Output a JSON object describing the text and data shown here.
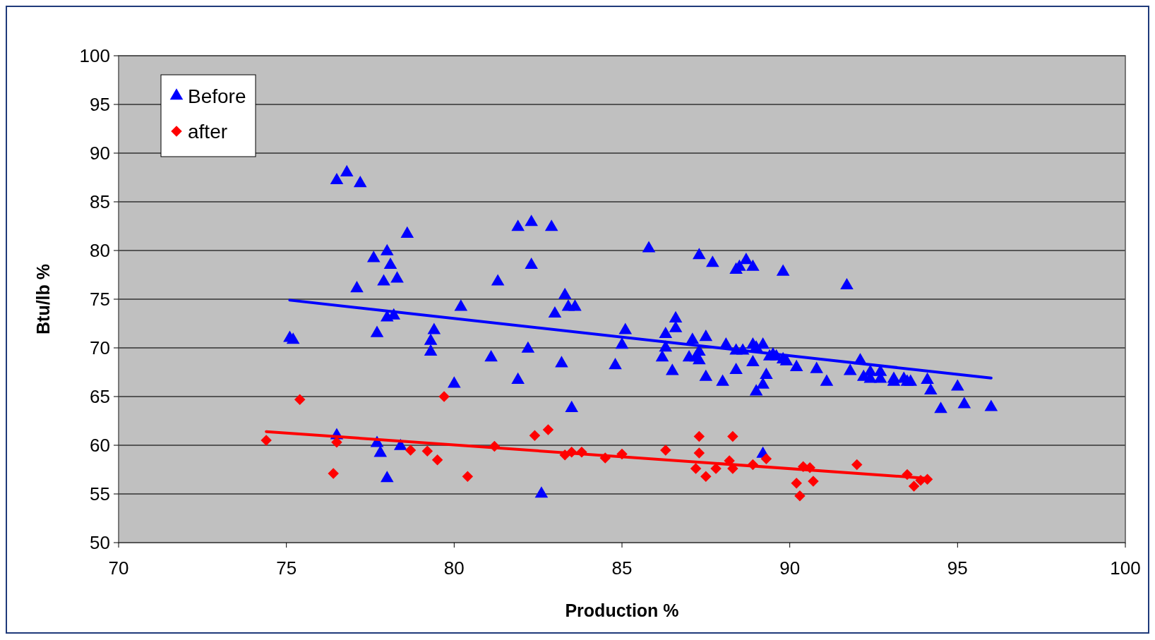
{
  "chart_data": {
    "type": "scatter",
    "xlabel": "Production %",
    "ylabel": "Btu/lb %",
    "xlim": [
      70,
      100
    ],
    "xticks": [
      70,
      75,
      80,
      85,
      90,
      95,
      100
    ],
    "ylim": [
      50,
      100
    ],
    "yticks": [
      50,
      55,
      60,
      65,
      70,
      75,
      80,
      85,
      90,
      95,
      100
    ],
    "grid": "y",
    "legend": "top left",
    "series": [
      {
        "name": "Before",
        "color": "#0000ff",
        "marker": "triangle",
        "x": [
          75.1,
          75.2,
          76.5,
          76.8,
          77.2,
          77.1,
          77.6,
          77.7,
          77.7,
          77.8,
          77.9,
          78,
          78,
          78.1,
          78.2,
          78,
          78.3,
          78.4,
          78.6,
          79.3,
          79.3,
          79.4,
          80,
          80.2,
          81.1,
          81.3,
          81.9,
          81.9,
          82.2,
          82.3,
          82.3,
          82.6,
          82.9,
          83,
          83.2,
          83.3,
          83.4,
          83.6,
          83.5,
          76.5,
          84.8,
          85,
          85.1,
          85.8,
          86.2,
          86.3,
          86.3,
          86.5,
          86.6,
          86.6,
          87,
          87.1,
          87.2,
          87.3,
          87.3,
          87.3,
          87.5,
          87.5,
          87.7,
          88,
          88.1,
          88.4,
          88.4,
          88.5,
          88.4,
          88.6,
          88.7,
          88.9,
          88.9,
          88.9,
          89,
          89,
          89.2,
          89.2,
          89.3,
          89.4,
          89.5,
          89.6,
          89.8,
          89.8,
          89.9,
          89.2,
          90.2,
          90.8,
          91.1,
          91.7,
          91.8,
          92.1,
          92.2,
          92.4,
          92.4,
          92.7,
          92.7,
          93.1,
          93.1,
          93.4,
          93.5,
          93.6,
          94.1,
          94.2,
          94.5,
          95,
          95.2,
          96
        ],
        "values": [
          71,
          70.8,
          87.2,
          88,
          86.9,
          76.1,
          79.2,
          71.5,
          60.2,
          59.2,
          76.8,
          79.9,
          73.1,
          78.5,
          73.3,
          56.6,
          77.1,
          59.9,
          81.7,
          70.7,
          69.6,
          71.8,
          66.3,
          74.2,
          69,
          76.8,
          82.4,
          66.7,
          69.9,
          82.9,
          78.5,
          55,
          82.4,
          73.5,
          68.4,
          75.4,
          74.2,
          74.2,
          63.8,
          61,
          68.2,
          70.3,
          71.8,
          80.2,
          69,
          71.4,
          70,
          67.6,
          73,
          72,
          69,
          70.8,
          69,
          69.6,
          68.7,
          79.5,
          71.1,
          67,
          78.7,
          66.5,
          70.3,
          78,
          67.7,
          78.3,
          69.7,
          69.7,
          79,
          70.3,
          78.3,
          68.5,
          65.5,
          70,
          66.2,
          70.3,
          67.2,
          69.1,
          69.3,
          69.1,
          68.8,
          77.8,
          68.6,
          59.1,
          68,
          67.8,
          66.5,
          76.4,
          67.6,
          68.7,
          67,
          67.5,
          66.8,
          67.5,
          66.8,
          66.8,
          66.5,
          66.8,
          66.5,
          66.5,
          66.7,
          65.6,
          63.7,
          66,
          64.2,
          63.9
        ]
      },
      {
        "name": "after",
        "color": "#ff0000",
        "marker": "diamond",
        "x": [
          74.4,
          75.4,
          76.4,
          76.5,
          78.7,
          79.2,
          79.5,
          79.7,
          80.4,
          81.2,
          82.4,
          82.8,
          83.3,
          83.5,
          83.8,
          84.5,
          85,
          86.3,
          87.3,
          87.3,
          87.2,
          87.5,
          87.8,
          88.2,
          88.3,
          88.3,
          88.9,
          89.3,
          90.2,
          90.3,
          90.4,
          90.6,
          90.7,
          92,
          93.5,
          93.7,
          93.9,
          94.1
        ],
        "values": [
          60.5,
          64.7,
          57.1,
          60.3,
          59.5,
          59.4,
          58.5,
          65,
          56.8,
          59.9,
          61,
          61.6,
          59,
          59.3,
          59.3,
          58.7,
          59.1,
          59.5,
          60.9,
          59.2,
          57.6,
          56.8,
          57.6,
          58.4,
          57.6,
          60.9,
          58,
          58.6,
          56.1,
          54.8,
          57.8,
          57.7,
          56.3,
          58,
          57,
          55.8,
          56.4,
          56.5
        ]
      },
      {
        "type": "line",
        "color": "#0000ff",
        "marker": "none",
        "x": [
          75.1,
          96
        ],
        "values": [
          74.9,
          66.9
        ]
      },
      {
        "type": "line",
        "color": "#ff0000",
        "marker": "none",
        "x": [
          74.4,
          94.1
        ],
        "values": [
          61.4,
          56.6
        ]
      }
    ]
  }
}
